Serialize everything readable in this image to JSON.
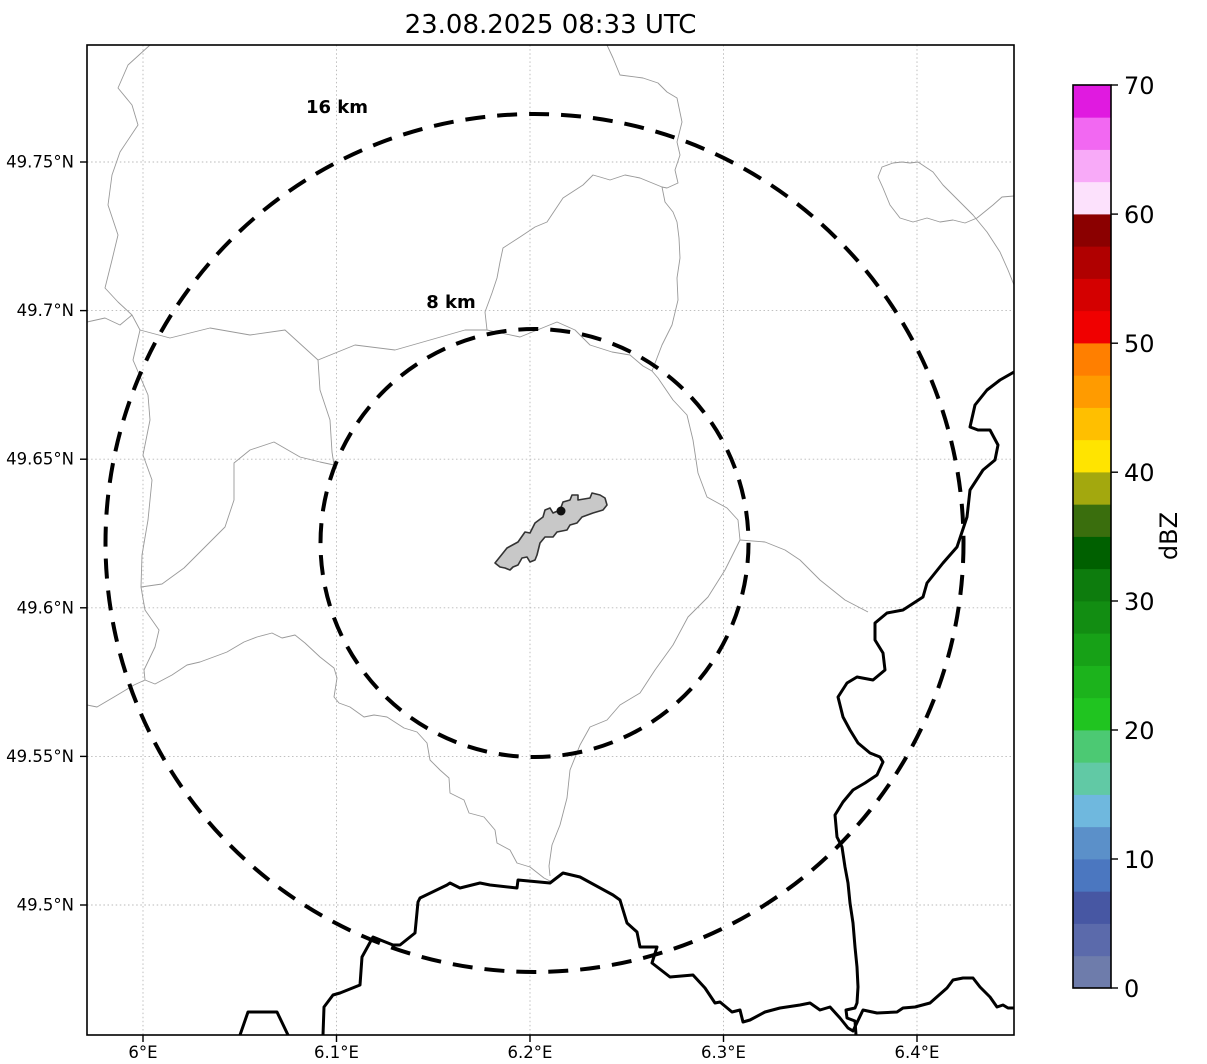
{
  "title": "23.08.2025 08:33 UTC",
  "map": {
    "range_rings": [
      {
        "label": "16 km",
        "radius_km": 16
      },
      {
        "label": "8 km",
        "radius_km": 8
      }
    ],
    "features": {
      "airport_outline": "gray filled polygon at map center (radar site area)",
      "radar_site_marker": "small black dot on airport polygon",
      "thin_gray_lines": "administrative boundaries / rivers",
      "thick_black_lines": "country borders (meandering river border right side, jagged border along bottom)"
    }
  },
  "axes": {
    "x_ticks": [
      "6°E",
      "6.1°E",
      "6.2°E",
      "6.3°E",
      "6.4°E"
    ],
    "y_ticks": [
      "49.75°N",
      "49.7°N",
      "49.65°N",
      "49.6°N",
      "49.55°N",
      "49.5°N"
    ]
  },
  "chart_data": {
    "type": "heatmap",
    "title": "23.08.2025 08:33 UTC",
    "field": "radar reflectivity",
    "values": [],
    "note_visible_state": "no reflectivity echoes visible on map (clear)",
    "x_tick_labels": [
      "6°E",
      "6.1°E",
      "6.2°E",
      "6.3°E",
      "6.4°E"
    ],
    "y_tick_labels": [
      "49.75°N",
      "49.7°N",
      "49.65°N",
      "49.6°N",
      "49.55°N",
      "49.5°N"
    ],
    "range_rings_km": [
      8,
      16
    ],
    "grid": true,
    "colorbar": {
      "label": "dBZ",
      "min": 0,
      "max": 70,
      "segment_step": 2.5,
      "ticks": [
        "0",
        "10",
        "20",
        "30",
        "40",
        "50",
        "60",
        "70"
      ],
      "colors_bottom_to_top": [
        "#6e7cab",
        "#5b6aab",
        "#4757a3",
        "#4b77c0",
        "#5b90c9",
        "#6fb8de",
        "#61c9a5",
        "#4cc973",
        "#20c420",
        "#1cb31c",
        "#17a117",
        "#128d12",
        "#0d7c0d",
        "#006000",
        "#3a6e0d",
        "#a3a80e",
        "#ffe400",
        "#ffbf00",
        "#ff9b00",
        "#ff7f00",
        "#f00000",
        "#d40000",
        "#b00000",
        "#8b0000",
        "#fce1fc",
        "#f8aaf8",
        "#f268f2",
        "#e01ae0"
      ]
    }
  }
}
